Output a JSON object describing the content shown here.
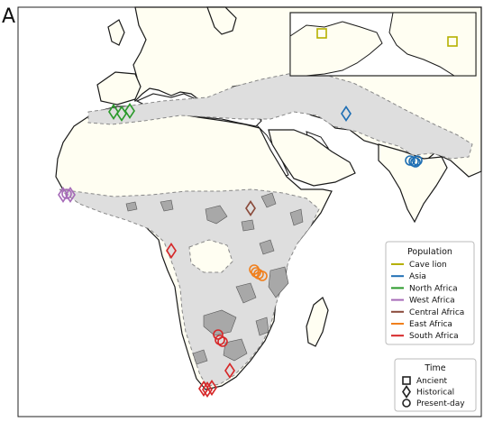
{
  "panel_label": "A",
  "colors": {
    "ocean": "#ffffff",
    "land": "#fffef2",
    "range": "#dedede",
    "habitat": "#a8a8a8",
    "coast": "#1a1a1a",
    "cave_lion": "#b5b000",
    "asia": "#1f6fb4",
    "north_africa": "#2a9a2a",
    "west_africa": "#a66bb8",
    "central_africa": "#8a4a3a",
    "east_africa": "#f07f1c",
    "south_africa": "#d62728"
  },
  "legend_population": {
    "title": "Population",
    "items": [
      {
        "label": "Cave lion",
        "color": "#b5b000"
      },
      {
        "label": "Asia",
        "color": "#1f6fb4"
      },
      {
        "label": "North Africa",
        "color": "#2a9a2a"
      },
      {
        "label": "West Africa",
        "color": "#a66bb8"
      },
      {
        "label": "Central Africa",
        "color": "#8a4a3a"
      },
      {
        "label": "East Africa",
        "color": "#f07f1c"
      },
      {
        "label": "South Africa",
        "color": "#d62728"
      }
    ]
  },
  "legend_time": {
    "title": "Time",
    "items": [
      {
        "label": "Ancient",
        "symbol": "square"
      },
      {
        "label": "Historical",
        "symbol": "diamond"
      },
      {
        "label": "Present-day",
        "symbol": "circle"
      }
    ]
  }
}
